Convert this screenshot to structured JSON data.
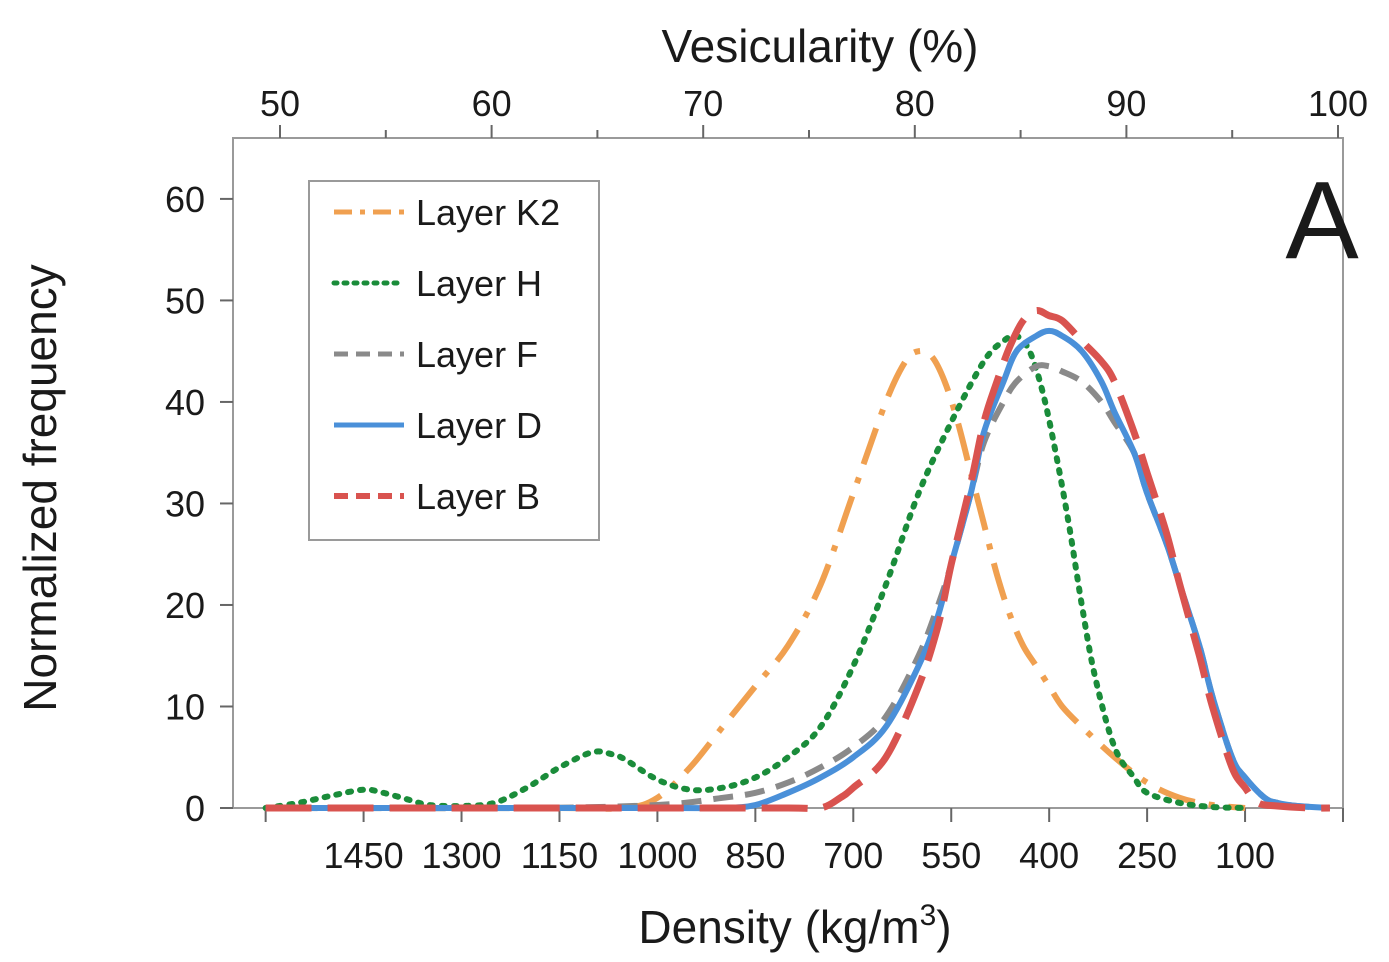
{
  "chart_data": {
    "type": "line",
    "panel_label": "A",
    "top_axis": {
      "label": "Vesicularity (%)",
      "ticks": [
        "50",
        "60",
        "70",
        "80",
        "90",
        "100"
      ],
      "range": [
        50,
        100
      ]
    },
    "x_axis": {
      "label_main": "Density (kg/m",
      "label_sup": "3",
      "label_tail": ")",
      "ticks": [
        "1450",
        "1300",
        "1150",
        "1000",
        "850",
        "700",
        "550",
        "400",
        "250",
        "100"
      ],
      "range": [
        1650,
        -50
      ],
      "reversed": true
    },
    "y_axis": {
      "label": "Normalized frequency",
      "ticks": [
        "0",
        "10",
        "20",
        "30",
        "40",
        "50",
        "60"
      ],
      "range": [
        0,
        66
      ]
    },
    "grid": false,
    "legend": {
      "position": "top-left",
      "entries": [
        "Layer K2",
        "Layer H",
        "Layer F",
        "Layer D",
        "Layer B"
      ]
    },
    "series": [
      {
        "name": "Layer K2",
        "color": "#f0a050",
        "dash": "long-dash-dot",
        "x": [
          1600,
          1450,
          1300,
          1150,
          1050,
          1000,
          950,
          900,
          850,
          800,
          750,
          700,
          650,
          620,
          600,
          580,
          560,
          540,
          520,
          500,
          480,
          460,
          440,
          420,
          400,
          380,
          350,
          300,
          250,
          200,
          150,
          100
        ],
        "y": [
          0,
          0,
          0,
          0,
          0,
          1,
          4,
          8,
          12,
          16,
          22,
          31,
          40,
          44,
          45,
          44.5,
          42,
          38,
          33,
          28,
          23,
          19,
          16,
          14,
          12,
          10,
          8,
          5,
          2.5,
          1,
          0.3,
          0
        ]
      },
      {
        "name": "Layer H",
        "color": "#1a8c3a",
        "dash": "dotted",
        "x": [
          1600,
          1550,
          1500,
          1450,
          1420,
          1380,
          1350,
          1300,
          1250,
          1200,
          1150,
          1100,
          1070,
          1050,
          1000,
          950,
          900,
          850,
          800,
          750,
          700,
          650,
          600,
          550,
          500,
          470,
          450,
          430,
          410,
          390,
          370,
          350,
          330,
          300,
          270,
          250,
          200,
          150,
          100
        ],
        "y": [
          0,
          0.5,
          1.2,
          1.8,
          1.5,
          0.8,
          0.3,
          0.2,
          0.5,
          2,
          4,
          5.5,
          5.3,
          4.8,
          2.8,
          1.8,
          2,
          3,
          5,
          8,
          14,
          22,
          31,
          38,
          44,
          46,
          46.5,
          45,
          41,
          35,
          28,
          20,
          13,
          6,
          3,
          1.5,
          0.5,
          0.1,
          0
        ]
      },
      {
        "name": "Layer F",
        "color": "#8a8a8a",
        "dash": "dashed",
        "x": [
          1600,
          1200,
          1000,
          900,
          850,
          800,
          750,
          700,
          650,
          600,
          570,
          550,
          520,
          500,
          470,
          450,
          420,
          400,
          380,
          350,
          320,
          300,
          270,
          250,
          220,
          200,
          170,
          150,
          120,
          100,
          70,
          50,
          20,
          -30
        ],
        "y": [
          0,
          0,
          0.3,
          1,
          1.5,
          2.5,
          4,
          6,
          9,
          15,
          20,
          24,
          31,
          36,
          40,
          42,
          43.5,
          43.5,
          43,
          42,
          40,
          38,
          35,
          31,
          26,
          22,
          16,
          11,
          5,
          3,
          1,
          0.5,
          0.2,
          0
        ]
      },
      {
        "name": "Layer D",
        "color": "#4a90d9",
        "dash": "solid",
        "x": [
          1600,
          1000,
          900,
          850,
          800,
          750,
          700,
          650,
          600,
          570,
          550,
          520,
          500,
          470,
          450,
          420,
          400,
          380,
          350,
          320,
          300,
          270,
          250,
          220,
          200,
          170,
          150,
          120,
          100,
          70,
          50,
          20,
          -30
        ],
        "y": [
          0,
          0,
          0,
          0.3,
          1.5,
          3,
          5,
          8,
          14,
          19,
          24,
          31,
          37,
          42,
          45,
          46.5,
          47,
          46.5,
          45,
          42,
          39,
          35,
          31,
          26,
          22,
          16,
          11,
          5,
          3,
          1,
          0.5,
          0.2,
          0
        ]
      },
      {
        "name": "Layer B",
        "color": "#d9534f",
        "dash": "long-dash",
        "x": [
          1600,
          1000,
          800,
          750,
          720,
          700,
          650,
          600,
          570,
          550,
          520,
          500,
          480,
          460,
          440,
          420,
          400,
          380,
          350,
          320,
          300,
          270,
          250,
          220,
          200,
          170,
          150,
          120,
          100,
          80,
          50,
          0,
          -30
        ],
        "y": [
          0,
          0,
          0,
          0,
          1,
          2,
          5,
          12,
          18,
          24,
          32,
          38,
          42,
          45.5,
          48,
          49,
          48.5,
          48,
          46,
          44,
          42,
          37,
          33,
          27,
          22,
          15,
          10,
          4,
          2,
          0.5,
          0.2,
          0,
          0
        ]
      }
    ]
  }
}
